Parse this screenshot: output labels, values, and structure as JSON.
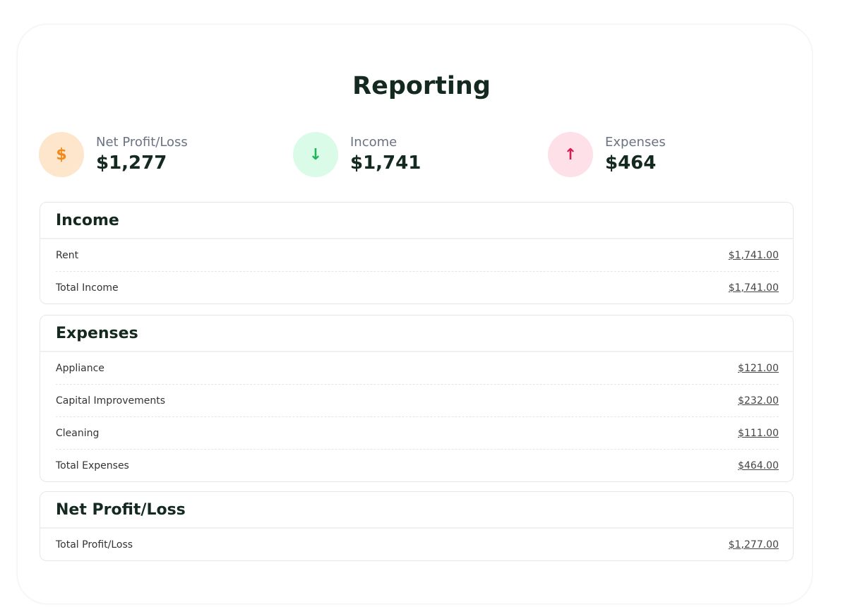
{
  "title": "Reporting",
  "stats": [
    {
      "label": "Net Profit/Loss",
      "value": "$1,277",
      "icon": "dollar-icon",
      "glyph": "$",
      "bg": "#fde6cc",
      "fg": "#f28a1b"
    },
    {
      "label": "Income",
      "value": "$1,741",
      "icon": "arrow-down-icon",
      "glyph": "↓",
      "bg": "#d9fbe8",
      "fg": "#22b35c"
    },
    {
      "label": "Expenses",
      "value": "$464",
      "icon": "arrow-up-icon",
      "glyph": "↑",
      "bg": "#fde0e8",
      "fg": "#d81b50"
    }
  ],
  "sections": {
    "income": {
      "title": "Income",
      "rows": [
        {
          "label": "Rent",
          "amount": "$1,741.00"
        },
        {
          "label": "Total Income",
          "amount": "$1,741.00"
        }
      ]
    },
    "expenses": {
      "title": "Expenses",
      "rows": [
        {
          "label": "Appliance",
          "amount": "$121.00"
        },
        {
          "label": "Capital Improvements",
          "amount": "$232.00"
        },
        {
          "label": "Cleaning",
          "amount": "$111.00"
        },
        {
          "label": "Total Expenses",
          "amount": "$464.00"
        }
      ]
    },
    "net": {
      "title": "Net Profit/Loss",
      "rows": [
        {
          "label": "Total Profit/Loss",
          "amount": "$1,277.00"
        }
      ]
    }
  }
}
